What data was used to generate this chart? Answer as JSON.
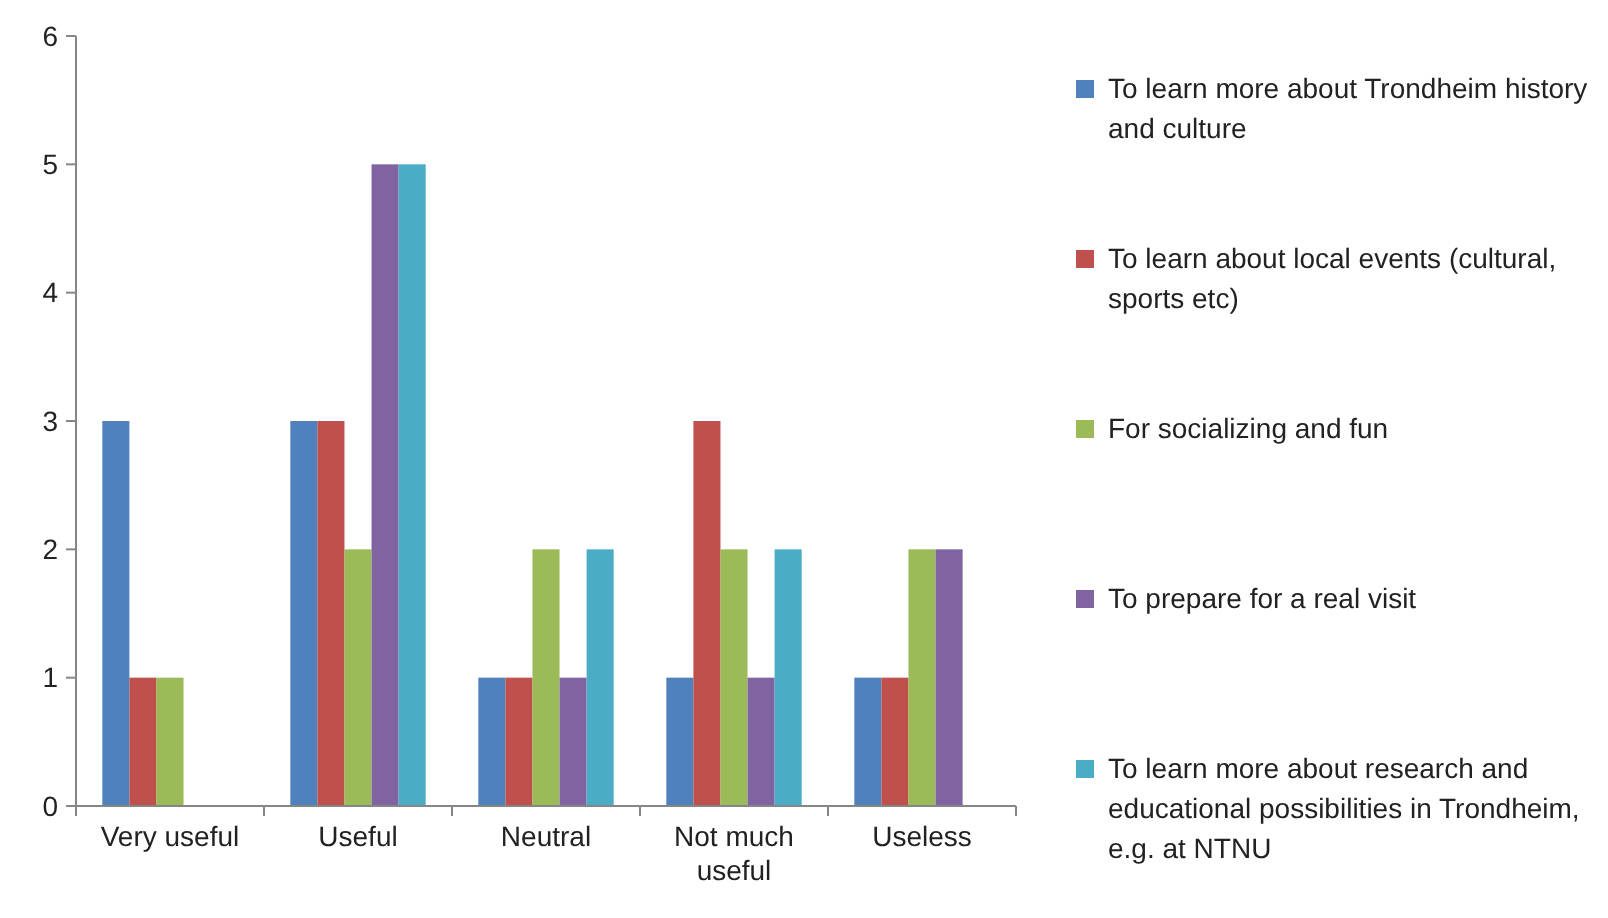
{
  "chart_data": {
    "type": "bar",
    "categories": [
      "Very useful",
      "Useful",
      "Neutral",
      "Not much useful",
      "Useless"
    ],
    "series": [
      {
        "name": "To learn more about Trondheim history and culture",
        "color": "#4f81bd",
        "values": [
          3,
          3,
          1,
          1,
          1
        ]
      },
      {
        "name": "To learn about local events (cultural, sports etc)",
        "color": "#c0504d",
        "values": [
          1,
          3,
          1,
          3,
          1
        ]
      },
      {
        "name": "For socializing and fun",
        "color": "#9bbb59",
        "values": [
          1,
          2,
          2,
          2,
          2
        ]
      },
      {
        "name": "To prepare for a real visit",
        "color": "#8064a2",
        "values": [
          0,
          5,
          1,
          1,
          2
        ]
      },
      {
        "name": "To learn more about research and educational possibilities in Trondheim, e.g. at NTNU",
        "color": "#4bacc6",
        "values": [
          0,
          5,
          2,
          2,
          0
        ]
      }
    ],
    "ylim": [
      0,
      6
    ],
    "yticks": [
      0,
      1,
      2,
      3,
      4,
      5,
      6
    ],
    "grid": false,
    "legend": "right"
  }
}
